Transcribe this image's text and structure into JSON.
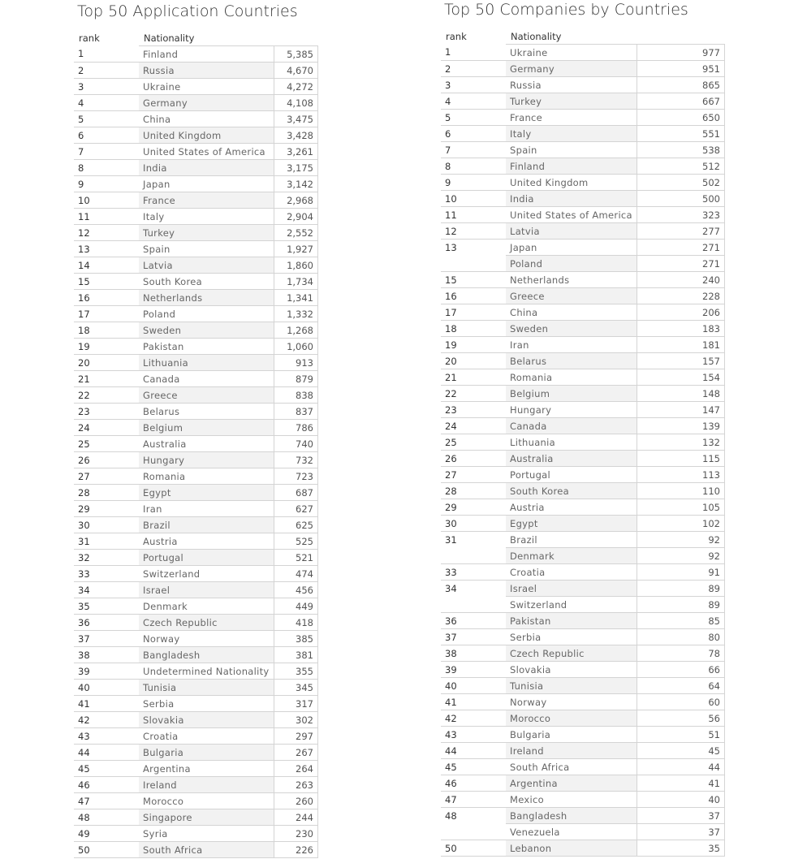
{
  "left": {
    "title": "Top 50 Application Countries",
    "col_rank": "rank",
    "col_nationality": "Nationality",
    "rows": [
      [
        "1",
        "Finland",
        "5,385"
      ],
      [
        "2",
        "Russia",
        "4,670"
      ],
      [
        "3",
        "Ukraine",
        "4,272"
      ],
      [
        "4",
        "Germany",
        "4,108"
      ],
      [
        "5",
        "China",
        "3,475"
      ],
      [
        "6",
        "United Kingdom",
        "3,428"
      ],
      [
        "7",
        "United States of America",
        "3,261"
      ],
      [
        "8",
        "India",
        "3,175"
      ],
      [
        "9",
        "Japan",
        "3,142"
      ],
      [
        "10",
        "France",
        "2,968"
      ],
      [
        "11",
        "Italy",
        "2,904"
      ],
      [
        "12",
        "Turkey",
        "2,552"
      ],
      [
        "13",
        "Spain",
        "1,927"
      ],
      [
        "14",
        "Latvia",
        "1,860"
      ],
      [
        "15",
        "South Korea",
        "1,734"
      ],
      [
        "16",
        "Netherlands",
        "1,341"
      ],
      [
        "17",
        "Poland",
        "1,332"
      ],
      [
        "18",
        "Sweden",
        "1,268"
      ],
      [
        "19",
        "Pakistan",
        "1,060"
      ],
      [
        "20",
        "Lithuania",
        "913"
      ],
      [
        "21",
        "Canada",
        "879"
      ],
      [
        "22",
        "Greece",
        "838"
      ],
      [
        "23",
        "Belarus",
        "837"
      ],
      [
        "24",
        "Belgium",
        "786"
      ],
      [
        "25",
        "Australia",
        "740"
      ],
      [
        "26",
        "Hungary",
        "732"
      ],
      [
        "27",
        "Romania",
        "723"
      ],
      [
        "28",
        "Egypt",
        "687"
      ],
      [
        "29",
        "Iran",
        "627"
      ],
      [
        "30",
        "Brazil",
        "625"
      ],
      [
        "31",
        "Austria",
        "525"
      ],
      [
        "32",
        "Portugal",
        "521"
      ],
      [
        "33",
        "Switzerland",
        "474"
      ],
      [
        "34",
        "Israel",
        "456"
      ],
      [
        "35",
        "Denmark",
        "449"
      ],
      [
        "36",
        "Czech Republic",
        "418"
      ],
      [
        "37",
        "Norway",
        "385"
      ],
      [
        "38",
        "Bangladesh",
        "381"
      ],
      [
        "39",
        "Undetermined Nationality",
        "355"
      ],
      [
        "40",
        "Tunisia",
        "345"
      ],
      [
        "41",
        "Serbia",
        "317"
      ],
      [
        "42",
        "Slovakia",
        "302"
      ],
      [
        "43",
        "Croatia",
        "297"
      ],
      [
        "44",
        "Bulgaria",
        "267"
      ],
      [
        "45",
        "Argentina",
        "264"
      ],
      [
        "46",
        "Ireland",
        "263"
      ],
      [
        "47",
        "Morocco",
        "260"
      ],
      [
        "48",
        "Singapore",
        "244"
      ],
      [
        "49",
        "Syria",
        "230"
      ],
      [
        "50",
        "South Africa",
        "226"
      ]
    ]
  },
  "right": {
    "title": "Top 50 Companies by Countries",
    "col_rank": "rank",
    "col_nationality": "Nationality",
    "rows": [
      [
        "1",
        "Ukraine",
        "977"
      ],
      [
        "2",
        "Germany",
        "951"
      ],
      [
        "3",
        "Russia",
        "865"
      ],
      [
        "4",
        "Turkey",
        "667"
      ],
      [
        "5",
        "France",
        "650"
      ],
      [
        "6",
        "Italy",
        "551"
      ],
      [
        "7",
        "Spain",
        "538"
      ],
      [
        "8",
        "Finland",
        "512"
      ],
      [
        "9",
        "United Kingdom",
        "502"
      ],
      [
        "10",
        "India",
        "500"
      ],
      [
        "11",
        "United States of America",
        "323"
      ],
      [
        "12",
        "Latvia",
        "277"
      ],
      [
        "13",
        "Japan",
        "271"
      ],
      [
        "",
        "Poland",
        "271"
      ],
      [
        "15",
        "Netherlands",
        "240"
      ],
      [
        "16",
        "Greece",
        "228"
      ],
      [
        "17",
        "China",
        "206"
      ],
      [
        "18",
        "Sweden",
        "183"
      ],
      [
        "19",
        "Iran",
        "181"
      ],
      [
        "20",
        "Belarus",
        "157"
      ],
      [
        "21",
        "Romania",
        "154"
      ],
      [
        "22",
        "Belgium",
        "148"
      ],
      [
        "23",
        "Hungary",
        "147"
      ],
      [
        "24",
        "Canada",
        "139"
      ],
      [
        "25",
        "Lithuania",
        "132"
      ],
      [
        "26",
        "Australia",
        "115"
      ],
      [
        "27",
        "Portugal",
        "113"
      ],
      [
        "28",
        "South Korea",
        "110"
      ],
      [
        "29",
        "Austria",
        "105"
      ],
      [
        "30",
        "Egypt",
        "102"
      ],
      [
        "31",
        "Brazil",
        "92"
      ],
      [
        "",
        "Denmark",
        "92"
      ],
      [
        "33",
        "Croatia",
        "91"
      ],
      [
        "34",
        "Israel",
        "89"
      ],
      [
        "",
        "Switzerland",
        "89"
      ],
      [
        "36",
        "Pakistan",
        "85"
      ],
      [
        "37",
        "Serbia",
        "80"
      ],
      [
        "38",
        "Czech Republic",
        "78"
      ],
      [
        "39",
        "Slovakia",
        "66"
      ],
      [
        "40",
        "Tunisia",
        "64"
      ],
      [
        "41",
        "Norway",
        "60"
      ],
      [
        "42",
        "Morocco",
        "56"
      ],
      [
        "43",
        "Bulgaria",
        "51"
      ],
      [
        "44",
        "Ireland",
        "45"
      ],
      [
        "45",
        "South Africa",
        "44"
      ],
      [
        "46",
        "Argentina",
        "41"
      ],
      [
        "47",
        "Mexico",
        "40"
      ],
      [
        "48",
        "Bangladesh",
        "37"
      ],
      [
        "",
        "Venezuela",
        "37"
      ],
      [
        "50",
        "Lebanon",
        "35"
      ]
    ]
  }
}
